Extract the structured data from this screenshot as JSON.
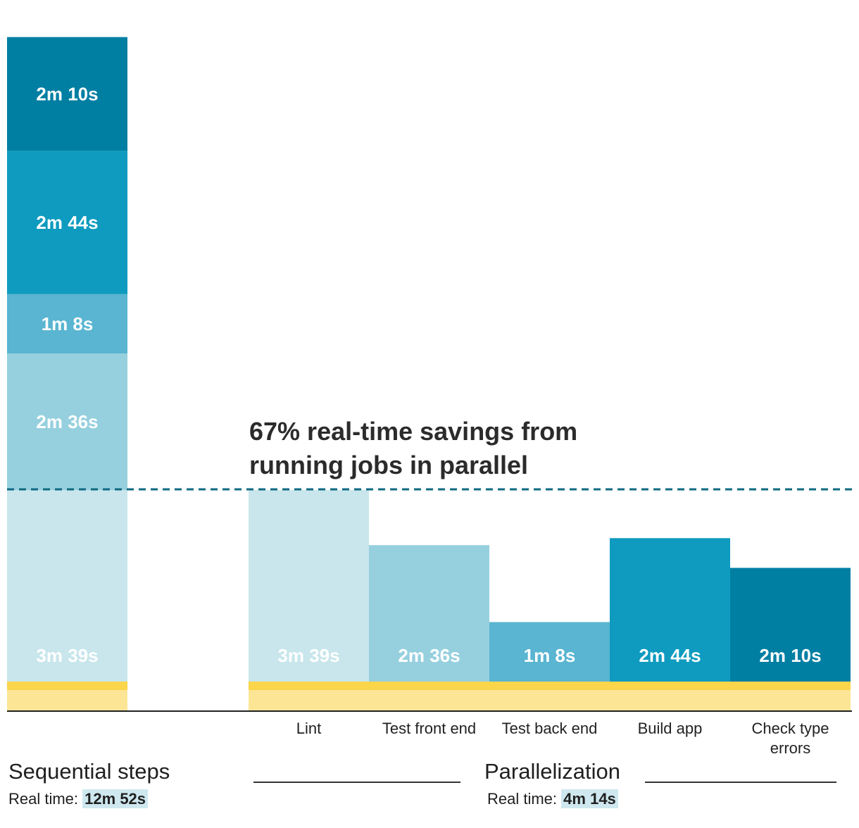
{
  "chart_data": {
    "type": "bar",
    "title": "67% real-time savings from running jobs in parallel",
    "unit": "seconds",
    "ylim": [
      0,
      800
    ],
    "jobs": [
      {
        "name": "Lint",
        "label": "3m 39s",
        "seconds": 219,
        "color": "#c8e6ec",
        "text_color": "#ffffff"
      },
      {
        "name": "Test front end",
        "label": "2m 36s",
        "seconds": 156,
        "color": "#96d0de",
        "text_color": "#ffffff"
      },
      {
        "name": "Test back end",
        "label": "1m 8s",
        "seconds": 68,
        "color": "#59b5d1",
        "text_color": "#ffffff"
      },
      {
        "name": "Build app",
        "label": "2m 44s",
        "seconds": 164,
        "color": "#0e9bbf",
        "text_color": "#ffffff"
      },
      {
        "name": "Check type errors",
        "label": "2m 10s",
        "seconds": 130,
        "color": "#017fa3",
        "text_color": "#ffffff"
      }
    ],
    "setup_seconds": 30,
    "setup_colors": {
      "top": "#fbd54a",
      "bottom": "#fde596"
    },
    "sequential": {
      "title": "Sequential steps",
      "real_time_label": "Real time:",
      "real_time": "12m 52s",
      "seconds": 772
    },
    "parallel": {
      "title": "Parallelization",
      "real_time_label": "Real time:",
      "real_time": "4m 14s",
      "seconds": 254
    },
    "reference_line": {
      "style": "dashed",
      "color": "#0f6a83",
      "at": "max parallel job"
    }
  }
}
